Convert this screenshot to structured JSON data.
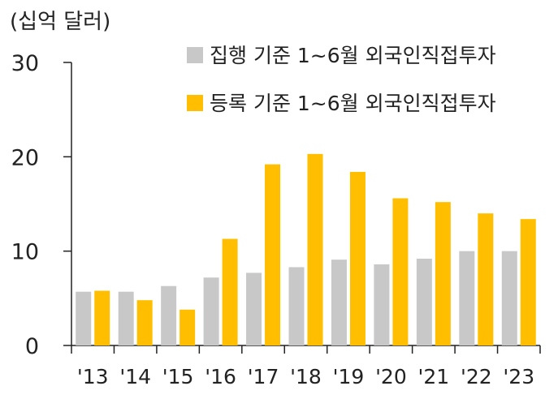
{
  "unit_label": "(십억 달러)",
  "chart_data": {
    "type": "bar",
    "categories": [
      "'13",
      "'14",
      "'15",
      "'16",
      "'17",
      "'18",
      "'19",
      "'20",
      "'21",
      "'22",
      "'23"
    ],
    "series": [
      {
        "name": "집행 기준 1~6월 외국인직접투자",
        "color": "#c8c8c8",
        "values": [
          5.7,
          5.7,
          6.3,
          7.2,
          7.7,
          8.3,
          9.1,
          8.6,
          9.2,
          10.0,
          10.0
        ]
      },
      {
        "name": "등록 기준 1~6월 외국인직접투자",
        "color": "#ffbf00",
        "values": [
          5.8,
          4.8,
          3.8,
          11.3,
          19.2,
          20.3,
          18.4,
          15.6,
          15.2,
          14.0,
          13.4
        ]
      }
    ],
    "yticks": [
      0,
      10,
      20,
      30
    ],
    "ylim": [
      0,
      30
    ],
    "legend_position": "top-right",
    "grid": false
  }
}
